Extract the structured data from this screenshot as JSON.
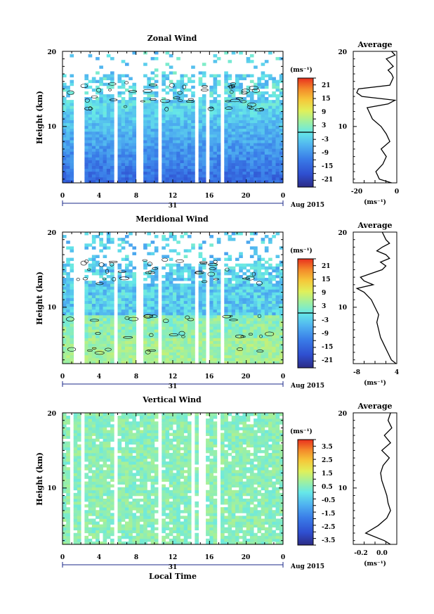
{
  "chart_data": [
    {
      "type": "heatmap",
      "title": "Zonal Wind",
      "xlabel": "",
      "ylabel": "Height (km)",
      "xlim": [
        0,
        24
      ],
      "ylim": [
        2.5,
        20
      ],
      "x_ticks": [
        "0",
        "4",
        "8",
        "12",
        "16",
        "20",
        "0"
      ],
      "y_ticks": [
        "10",
        "20"
      ],
      "date_day": "31",
      "date_label": "Aug 2015",
      "colorbar": {
        "unit": "(ms⁻¹)",
        "labels": [
          "21",
          "15",
          "9",
          "3",
          "-3",
          "-9",
          "-15",
          "-21"
        ],
        "min": -24,
        "max": 24
      },
      "zero_contour": true,
      "gaps_hours": [
        1.3,
        2.0,
        5.9,
        8.4,
        10.7,
        14.5,
        15.8,
        17.5
      ],
      "profile": {
        "title": "Average",
        "xlabel": "(ms⁻¹)",
        "x_ticks": [
          "-20",
          "0"
        ],
        "xlim": [
          -25,
          0
        ],
        "heights": [
          2.5,
          3,
          4,
          5,
          6,
          7,
          8,
          9,
          10,
          11,
          12,
          12.5,
          13,
          13.5,
          14,
          14.5,
          15,
          15.5,
          16,
          16.5,
          17,
          17.5,
          18,
          18.5,
          19,
          19.5,
          20
        ],
        "values": [
          -3,
          -10,
          -12,
          -8,
          -6,
          -9,
          -4,
          -6,
          -9,
          -14,
          -16,
          -17,
          -5,
          -1,
          -20,
          -23,
          -22,
          -4,
          -3,
          -2,
          -3,
          -5,
          -2,
          -4,
          -6,
          -1,
          -3
        ]
      }
    },
    {
      "type": "heatmap",
      "title": "Meridional Wind",
      "xlabel": "",
      "ylabel": "Height (km)",
      "xlim": [
        0,
        24
      ],
      "ylim": [
        2.5,
        20
      ],
      "x_ticks": [
        "0",
        "4",
        "8",
        "12",
        "16",
        "20",
        "0"
      ],
      "y_ticks": [
        "10",
        "20"
      ],
      "date_day": "31",
      "date_label": "Aug 2015",
      "colorbar": {
        "unit": "(ms⁻¹)",
        "labels": [
          "21",
          "15",
          "9",
          "3",
          "-3",
          "-9",
          "-15",
          "-21"
        ],
        "min": -24,
        "max": 24
      },
      "zero_contour": true,
      "gaps_hours": [
        1.3,
        2.0,
        5.9,
        8.4,
        10.7,
        14.5,
        15.8,
        17.5
      ],
      "profile": {
        "title": "Average",
        "xlabel": "(ms⁻¹)",
        "x_ticks": [
          "-8",
          "4"
        ],
        "xlim": [
          -8,
          4
        ],
        "heights": [
          2.5,
          3,
          4,
          5,
          6,
          7,
          8,
          9,
          10,
          11,
          12,
          12.5,
          13,
          13.5,
          14,
          14.5,
          15,
          15.5,
          16,
          16.5,
          17,
          17.5,
          18,
          18.5,
          19,
          19.5,
          20
        ],
        "values": [
          3.8,
          2.5,
          1.5,
          0.5,
          -0.5,
          -1,
          -1.5,
          -1,
          -2,
          -3,
          -5,
          -7,
          -2.5,
          -5,
          -6,
          -3,
          0,
          1,
          -0.5,
          2,
          1,
          -1.5,
          0,
          2,
          1,
          0.5,
          0
        ]
      }
    },
    {
      "type": "heatmap",
      "title": "Vertical Wind",
      "xlabel": "Local Time",
      "ylabel": "Height (km)",
      "xlim": [
        0,
        24
      ],
      "ylim": [
        2.5,
        20
      ],
      "x_ticks": [
        "0",
        "4",
        "8",
        "12",
        "16",
        "20",
        "0"
      ],
      "y_ticks": [
        "10",
        "20"
      ],
      "date_day": "31",
      "date_label": "Aug 2015",
      "colorbar": {
        "unit": "(ms⁻¹)",
        "labels": [
          "3.5",
          "2.5",
          "1.5",
          "0.5",
          "-0.5",
          "-1.5",
          "-2.5",
          "-3.5"
        ],
        "min": -4,
        "max": 4
      },
      "zero_contour": false,
      "gaps_hours": [
        1.0,
        2.2,
        5.8,
        10.6,
        14.3,
        15.2,
        17.1
      ],
      "profile": {
        "title": "Average",
        "xlabel": "(ms⁻¹)",
        "x_ticks": [
          "-0.2",
          "0.0"
        ],
        "xlim": [
          -0.25,
          0.1
        ],
        "heights": [
          2.5,
          3,
          4,
          5,
          6,
          7,
          8,
          9,
          10,
          11,
          12,
          13,
          14,
          15,
          16,
          17,
          18,
          19,
          20
        ],
        "values": [
          0.05,
          0.0,
          -0.15,
          -0.05,
          0.02,
          0.05,
          0.03,
          0.02,
          0.0,
          -0.02,
          -0.03,
          -0.01,
          0.04,
          -0.02,
          0.05,
          0.0,
          0.06,
          0.03,
          0.05
        ]
      }
    }
  ]
}
